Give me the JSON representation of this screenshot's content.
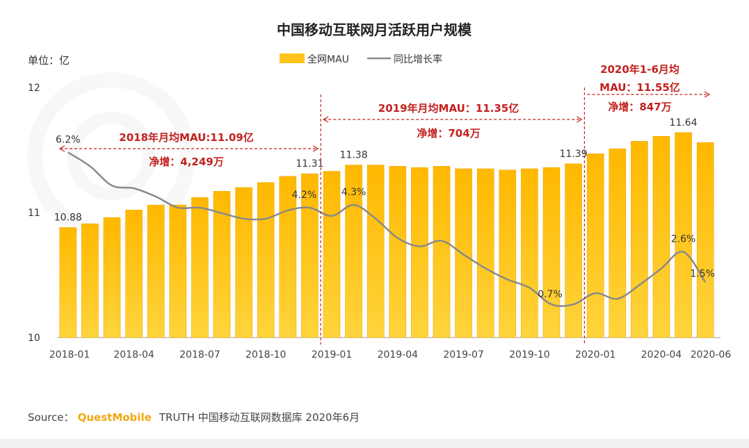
{
  "chart_data": {
    "type": "bar",
    "title": "中国移动互联网月活跃用户规模",
    "unit_label": "单位：亿",
    "legend": {
      "bar": "全网MAU",
      "line": "同比增长率"
    },
    "colors": {
      "bar": "#ffc31a",
      "bar_edge": "#f0a800",
      "line": "#8a8a8a",
      "annotation": "#c2211d",
      "brand": "#f2a80f"
    },
    "ylim": [
      10,
      12
    ],
    "yticks": [
      "10",
      "11",
      "12"
    ],
    "categories": [
      "2018-01",
      "2018-02",
      "2018-03",
      "2018-04",
      "2018-05",
      "2018-06",
      "2018-07",
      "2018-08",
      "2018-09",
      "2018-10",
      "2018-11",
      "2018-12",
      "2019-01",
      "2019-02",
      "2019-03",
      "2019-04",
      "2019-05",
      "2019-06",
      "2019-07",
      "2019-08",
      "2019-09",
      "2019-10",
      "2019-11",
      "2019-12",
      "2020-01",
      "2020-02",
      "2020-03",
      "2020-04",
      "2020-05",
      "2020-06"
    ],
    "xtick_labels": [
      "2018-01",
      "2018-04",
      "2018-07",
      "2018-10",
      "2019-01",
      "2019-04",
      "2019-07",
      "2019-10",
      "2020-01",
      "2020-04",
      "2020-06"
    ],
    "series": [
      {
        "name": "全网MAU",
        "values": [
          10.88,
          10.91,
          10.96,
          11.02,
          11.06,
          11.06,
          11.12,
          11.17,
          11.2,
          11.24,
          11.29,
          11.31,
          11.33,
          11.38,
          11.38,
          11.37,
          11.36,
          11.37,
          11.35,
          11.35,
          11.34,
          11.35,
          11.36,
          11.39,
          11.47,
          11.51,
          11.57,
          11.61,
          11.64,
          11.56
        ]
      },
      {
        "name": "同比增长率",
        "values": [
          6.2,
          5.7,
          5.0,
          4.9,
          4.6,
          4.2,
          4.2,
          4.0,
          3.8,
          3.8,
          4.1,
          4.2,
          3.9,
          4.3,
          3.8,
          3.1,
          2.8,
          3.0,
          2.5,
          2.0,
          1.6,
          1.3,
          0.7,
          0.7,
          1.1,
          0.9,
          1.4,
          2.0,
          2.6,
          1.5
        ]
      }
    ],
    "bar_labels": [
      {
        "index": 0,
        "text": "10.88"
      },
      {
        "index": 11,
        "text": "11.31"
      },
      {
        "index": 13,
        "text": "11.38"
      },
      {
        "index": 23,
        "text": "11.39"
      },
      {
        "index": 28,
        "text": "11.64"
      }
    ],
    "rate_labels": [
      {
        "index": 0,
        "text": "6.2%"
      },
      {
        "index": 11,
        "text": "4.2%"
      },
      {
        "index": 13,
        "text": "4.3%"
      },
      {
        "index": 22,
        "text": "0.7%"
      },
      {
        "index": 28,
        "text": "2.6%"
      },
      {
        "index": 29,
        "text": "1.5%"
      }
    ],
    "annotations": [
      {
        "lines": [
          "2018年月均MAU:11.09亿",
          "净增：4,249万"
        ]
      },
      {
        "lines": [
          "2019年月均MAU：11.35亿",
          "净增：704万"
        ]
      },
      {
        "lines": [
          "2020年1-6月均",
          "MAU：11.55亿",
          "净增：847万"
        ]
      }
    ]
  },
  "source": {
    "prefix": "Source：",
    "brand": "QuestMobile",
    "rest": "TRUTH 中国移动互联网数据库 2020年6月"
  }
}
